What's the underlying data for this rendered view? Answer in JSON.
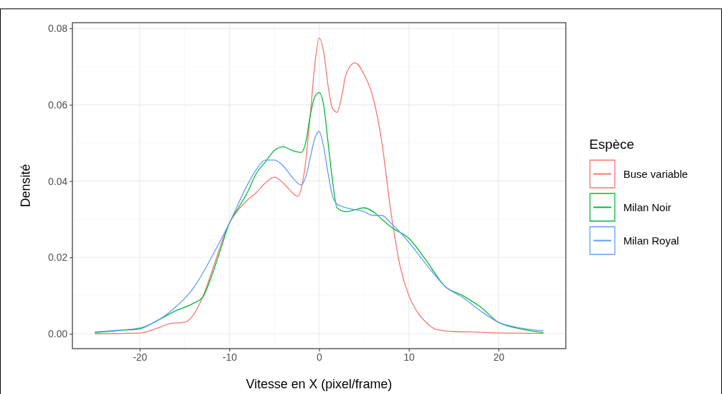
{
  "chart_data": {
    "type": "line",
    "xlabel": "Vitesse en X (pixel/frame)",
    "ylabel": "Densité",
    "legend_title": "Espèce",
    "legend": "right",
    "grid": true,
    "line_style": "solid",
    "marker": "none",
    "xlim": [
      -27.5,
      27.5
    ],
    "xticks": [
      -20,
      -10,
      0,
      10,
      20
    ],
    "ylim": [
      -0.0039,
      0.0815
    ],
    "yticks": [
      {
        "value": 0,
        "label": "0.00"
      },
      {
        "value": 0.02,
        "label": "0.02"
      },
      {
        "value": 0.04,
        "label": "0.04"
      },
      {
        "value": 0.06,
        "label": "0.06"
      },
      {
        "value": 0.08,
        "label": "0.08"
      }
    ],
    "series": [
      {
        "name": "Buse variable",
        "color": "#f8766d",
        "x": [
          -25,
          -20,
          -18,
          -16.5,
          -15,
          -14,
          -13,
          -12,
          -11,
          -10,
          -9,
          -8,
          -7,
          -6,
          -5,
          -4,
          -3,
          -2.4,
          -2,
          -1.5,
          -1,
          -0.5,
          0,
          0.5,
          1,
          1.5,
          2,
          2.5,
          3,
          4,
          5,
          6,
          7,
          8,
          9,
          10,
          11,
          12,
          13,
          15,
          18,
          20,
          25
        ],
        "values": [
          0,
          0.0002,
          0.0015,
          0.0027,
          0.003,
          0.005,
          0.0095,
          0.016,
          0.023,
          0.029,
          0.0325,
          0.035,
          0.037,
          0.0395,
          0.041,
          0.0395,
          0.037,
          0.036,
          0.038,
          0.045,
          0.057,
          0.07,
          0.0775,
          0.074,
          0.065,
          0.059,
          0.058,
          0.062,
          0.068,
          0.071,
          0.068,
          0.062,
          0.05,
          0.032,
          0.018,
          0.01,
          0.0055,
          0.0028,
          0.0012,
          0.0006,
          0.0004,
          0.0002,
          0.0001
        ]
      },
      {
        "name": "Milan Noir",
        "color": "#00ba38",
        "x": [
          -25,
          -22,
          -20,
          -18,
          -16,
          -14,
          -13,
          -12,
          -11,
          -10,
          -9,
          -8,
          -7,
          -6,
          -5,
          -4,
          -3,
          -2,
          -1.5,
          -1,
          -0.5,
          0,
          0.5,
          1,
          1.5,
          2,
          3,
          4,
          5,
          6,
          7,
          8,
          10,
          12,
          14,
          16,
          18,
          20,
          22,
          25
        ],
        "values": [
          0.0003,
          0.0009,
          0.0013,
          0.0035,
          0.006,
          0.008,
          0.0095,
          0.015,
          0.022,
          0.029,
          0.033,
          0.037,
          0.042,
          0.045,
          0.048,
          0.049,
          0.048,
          0.0475,
          0.05,
          0.057,
          0.062,
          0.0632,
          0.06,
          0.05,
          0.04,
          0.033,
          0.032,
          0.0325,
          0.033,
          0.032,
          0.03,
          0.028,
          0.025,
          0.019,
          0.0125,
          0.01,
          0.007,
          0.003,
          0.0015,
          0.0003
        ]
      },
      {
        "name": "Milan Royal",
        "color": "#619cff",
        "x": [
          -25,
          -22,
          -20,
          -18,
          -16,
          -14,
          -12,
          -10,
          -8,
          -7,
          -6,
          -5,
          -4,
          -3,
          -2,
          -1.5,
          -1,
          -0.5,
          0,
          0.5,
          1,
          1.5,
          2,
          3,
          4,
          5,
          6,
          7,
          8,
          10,
          12,
          14,
          16,
          18,
          20,
          22,
          25
        ],
        "values": [
          0.0005,
          0.001,
          0.0015,
          0.0035,
          0.007,
          0.012,
          0.02,
          0.029,
          0.039,
          0.043,
          0.0455,
          0.0455,
          0.044,
          0.041,
          0.039,
          0.041,
          0.046,
          0.051,
          0.053,
          0.049,
          0.042,
          0.036,
          0.034,
          0.033,
          0.0325,
          0.032,
          0.031,
          0.031,
          0.029,
          0.024,
          0.018,
          0.0125,
          0.0095,
          0.006,
          0.003,
          0.0017,
          0.0008
        ]
      }
    ]
  }
}
